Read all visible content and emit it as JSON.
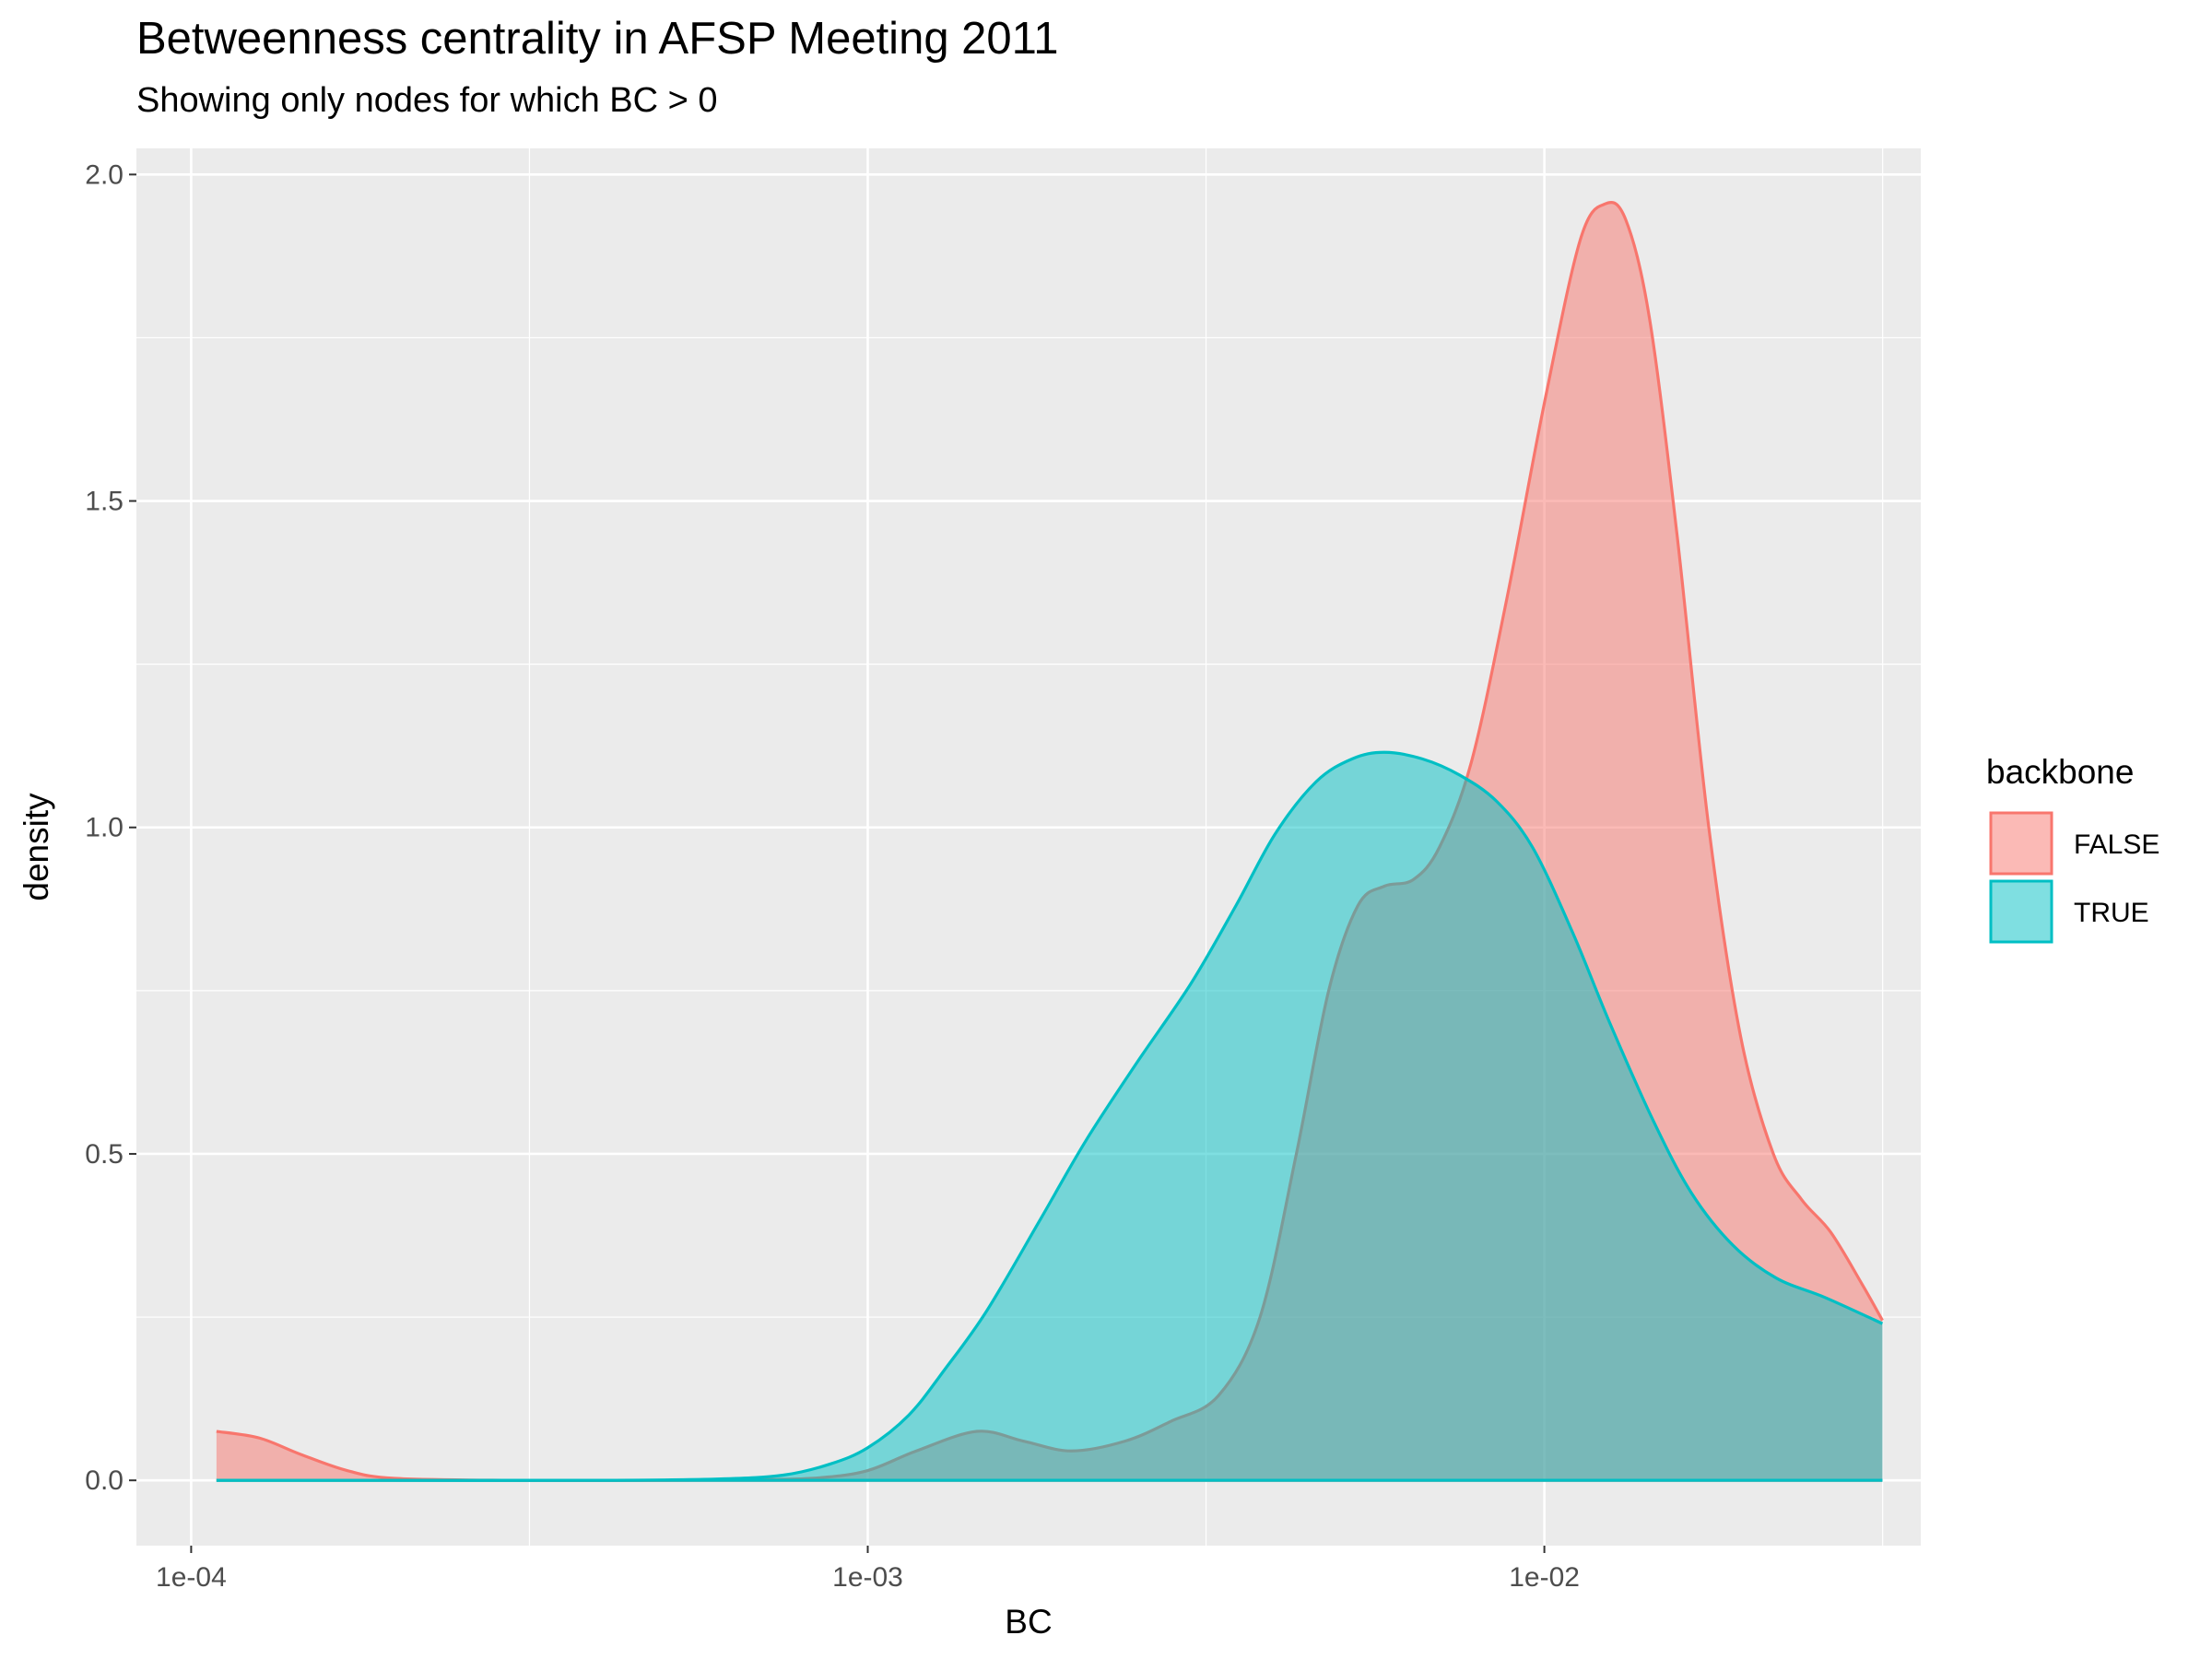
{
  "chart_data": {
    "type": "area",
    "title": "Betweenness centrality in AFSP Meeting 2011",
    "subtitle": "Showing only nodes for which BC > 0",
    "xlabel": "BC",
    "ylabel": "density",
    "x_scale": "log10",
    "xlim": [
      8.3e-05,
      0.036
    ],
    "ylim": [
      -0.1,
      2.04
    ],
    "x_ticks": [
      0.0001,
      0.001,
      0.01
    ],
    "x_tick_labels": [
      "1e-04",
      "1e-03",
      "1e-02"
    ],
    "y_ticks": [
      0,
      0.5,
      1,
      1.5,
      2
    ],
    "y_tick_labels": [
      "0.0",
      "0.5",
      "1.0",
      "1.5",
      "2.0"
    ],
    "grid": true,
    "legend": {
      "title": "backbone",
      "position": "right"
    },
    "series": [
      {
        "name": "FALSE",
        "color": "#F8766D",
        "points": [
          [
            0.000109,
            0.075
          ],
          [
            0.000126,
            0.065
          ],
          [
            0.000145,
            0.04
          ],
          [
            0.00017,
            0.015
          ],
          [
            0.0002,
            0.003
          ],
          [
            0.0003,
            0.0
          ],
          [
            0.0005,
            0.0
          ],
          [
            0.0007,
            0.001
          ],
          [
            0.00085,
            0.004
          ],
          [
            0.001,
            0.015
          ],
          [
            0.00118,
            0.045
          ],
          [
            0.00145,
            0.075
          ],
          [
            0.0017,
            0.06
          ],
          [
            0.002,
            0.045
          ],
          [
            0.0024,
            0.06
          ],
          [
            0.0028,
            0.09
          ],
          [
            0.0033,
            0.13
          ],
          [
            0.0038,
            0.25
          ],
          [
            0.0043,
            0.5
          ],
          [
            0.0048,
            0.75
          ],
          [
            0.0053,
            0.88
          ],
          [
            0.0058,
            0.91
          ],
          [
            0.0064,
            0.92
          ],
          [
            0.007,
            0.97
          ],
          [
            0.0078,
            1.1
          ],
          [
            0.0088,
            1.35
          ],
          [
            0.01,
            1.65
          ],
          [
            0.0113,
            1.9
          ],
          [
            0.0123,
            1.955
          ],
          [
            0.0132,
            1.93
          ],
          [
            0.0143,
            1.78
          ],
          [
            0.0157,
            1.45
          ],
          [
            0.0175,
            1.0
          ],
          [
            0.0195,
            0.68
          ],
          [
            0.0218,
            0.5
          ],
          [
            0.024,
            0.43
          ],
          [
            0.0265,
            0.38
          ],
          [
            0.0295,
            0.3
          ],
          [
            0.0316,
            0.245
          ]
        ]
      },
      {
        "name": "TRUE",
        "color": "#00BFC4",
        "points": [
          [
            0.000109,
            0.0
          ],
          [
            0.0002,
            0.0
          ],
          [
            0.0004,
            0.0
          ],
          [
            0.0006,
            0.002
          ],
          [
            0.00075,
            0.008
          ],
          [
            0.00088,
            0.025
          ],
          [
            0.001,
            0.05
          ],
          [
            0.00115,
            0.1
          ],
          [
            0.0013,
            0.17
          ],
          [
            0.0015,
            0.26
          ],
          [
            0.0018,
            0.4
          ],
          [
            0.0021,
            0.52
          ],
          [
            0.0025,
            0.64
          ],
          [
            0.003,
            0.76
          ],
          [
            0.0035,
            0.88
          ],
          [
            0.004,
            0.99
          ],
          [
            0.0046,
            1.07
          ],
          [
            0.0052,
            1.105
          ],
          [
            0.0058,
            1.115
          ],
          [
            0.0066,
            1.105
          ],
          [
            0.0075,
            1.08
          ],
          [
            0.0085,
            1.04
          ],
          [
            0.0096,
            0.97
          ],
          [
            0.011,
            0.84
          ],
          [
            0.0125,
            0.7
          ],
          [
            0.0145,
            0.55
          ],
          [
            0.0165,
            0.44
          ],
          [
            0.019,
            0.36
          ],
          [
            0.022,
            0.31
          ],
          [
            0.026,
            0.28
          ],
          [
            0.0316,
            0.24
          ]
        ]
      }
    ]
  }
}
